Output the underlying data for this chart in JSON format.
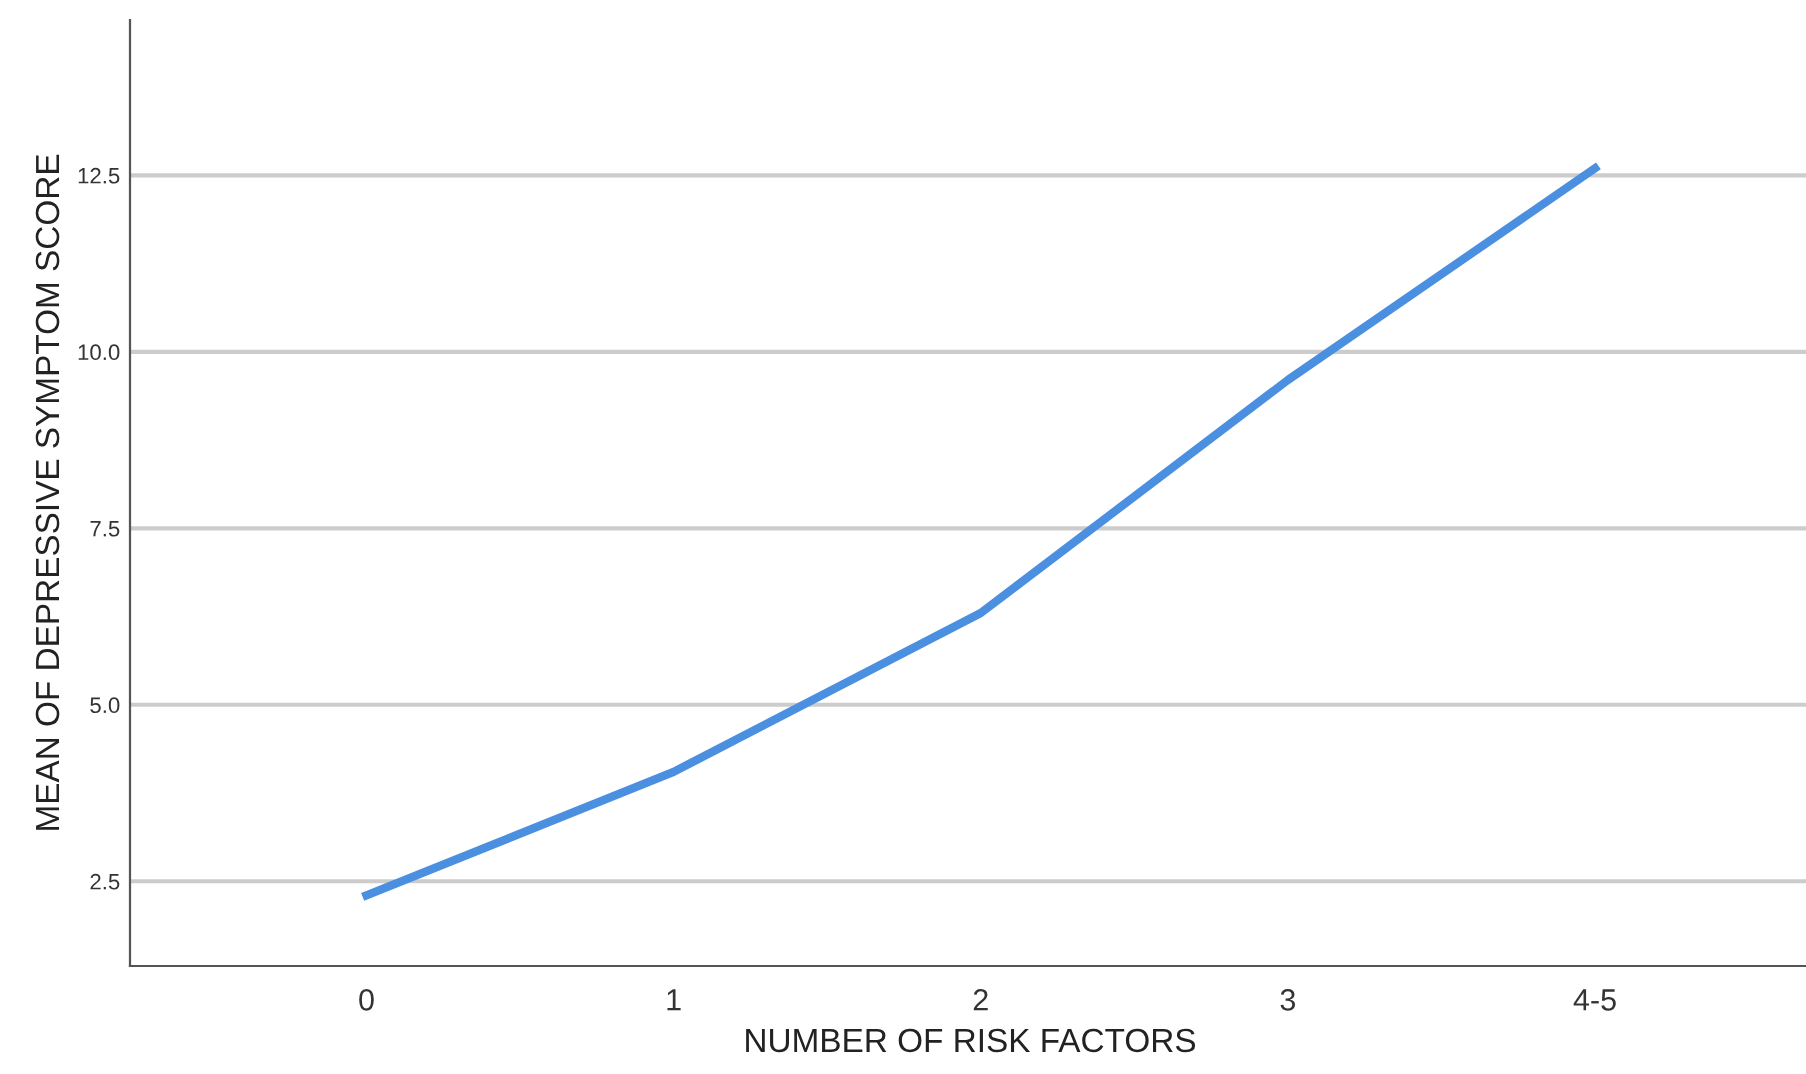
{
  "chart_data": {
    "type": "line",
    "xlabel": "NUMBER OF RISK FACTORS",
    "ylabel": "MEAN OF DEPRESSIVE SYMPTOM SCORE",
    "categories": [
      "0",
      "1",
      "2",
      "3",
      "4-5"
    ],
    "series": [
      {
        "color": "#4a8fe0",
        "values": [
          2.3,
          4.05,
          6.3,
          9.6,
          12.6
        ]
      }
    ],
    "ylim": [
      1.3,
      14.7
    ],
    "yticks": [
      2.5,
      {
        "value": 5,
        "label": "5.0"
      },
      7.5,
      {
        "value": 10,
        "label": "10.0"
      },
      12.5
    ],
    "grid": "y",
    "marker": "none",
    "line_style": "solid"
  }
}
